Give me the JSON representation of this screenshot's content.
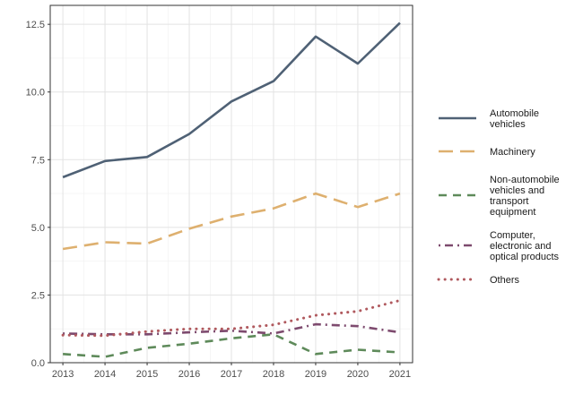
{
  "chart_data": {
    "type": "line",
    "title": "",
    "xlabel": "",
    "ylabel": "",
    "x": [
      2013,
      2014,
      2015,
      2016,
      2017,
      2018,
      2019,
      2020,
      2021
    ],
    "xlim": [
      2012.7,
      2021.3
    ],
    "ylim": [
      0,
      13.2
    ],
    "y_ticks": [
      "0.0",
      "2.5",
      "5.0",
      "7.5",
      "10.0",
      "12.5"
    ],
    "y_tick_values": [
      0,
      2.5,
      5,
      7.5,
      10,
      12.5
    ],
    "x_ticks": [
      "2013",
      "2014",
      "2015",
      "2016",
      "2017",
      "2018",
      "2019",
      "2020",
      "2021"
    ],
    "grid": true,
    "legend_position": "right",
    "series": [
      {
        "name": "Automobile vehicles",
        "legend_lines": [
          "Automobile",
          "vehicles"
        ],
        "color": "#4f6175",
        "dash": "solid",
        "values": [
          6.85,
          7.45,
          7.6,
          8.45,
          9.65,
          10.4,
          12.05,
          11.05,
          12.55
        ]
      },
      {
        "name": "Machinery",
        "legend_lines": [
          "Machinery"
        ],
        "color": "#deb06f",
        "dash": "longdash",
        "values": [
          4.2,
          4.45,
          4.4,
          4.95,
          5.4,
          5.7,
          6.25,
          5.75,
          6.25
        ]
      },
      {
        "name": "Non-automobile vehicles and transport equipment",
        "legend_lines": [
          "Non-automobile",
          "vehicles and",
          "transport",
          "equipment"
        ],
        "color": "#5e8a5a",
        "dash": "dashed",
        "values": [
          0.32,
          0.22,
          0.55,
          0.7,
          0.9,
          1.05,
          0.32,
          0.48,
          0.38
        ]
      },
      {
        "name": "Computer, electronic and optical products",
        "legend_lines": [
          "Computer,",
          "electronic and",
          "optical products"
        ],
        "color": "#7d4a6e",
        "dash": "dotdash",
        "values": [
          1.08,
          1.05,
          1.05,
          1.12,
          1.18,
          1.08,
          1.42,
          1.35,
          1.12
        ]
      },
      {
        "name": "Others",
        "legend_lines": [
          "Others"
        ],
        "color": "#b0595e",
        "dash": "dotted",
        "values": [
          1.02,
          1.0,
          1.15,
          1.25,
          1.25,
          1.4,
          1.75,
          1.9,
          2.3
        ]
      }
    ]
  }
}
